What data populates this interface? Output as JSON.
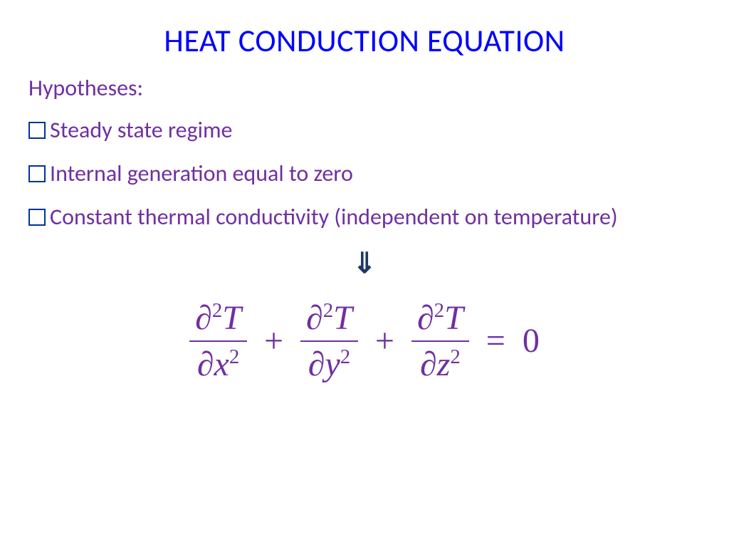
{
  "slide": {
    "title": "HEAT CONDUCTION EQUATION",
    "subtitle": "Hypotheses:",
    "bullets": [
      "Steady state regime",
      "Internal generation equal to zero",
      "Constant thermal conductivity (independent on temperature)"
    ],
    "arrow_glyph": "⇓",
    "equation": {
      "terms": [
        {
          "num_sym": "∂",
          "num_exp": "2",
          "num_var": "T",
          "den_sym": "∂",
          "den_var": "x",
          "den_exp": "2"
        },
        {
          "num_sym": "∂",
          "num_exp": "2",
          "num_var": "T",
          "den_sym": "∂",
          "den_var": "y",
          "den_exp": "2"
        },
        {
          "num_sym": "∂",
          "num_exp": "2",
          "num_var": "T",
          "den_sym": "∂",
          "den_var": "z",
          "den_exp": "2"
        }
      ],
      "rhs": "0",
      "plus": "+",
      "equals": "="
    }
  },
  "style": {
    "title_color": "#0000ff",
    "text_color": "#7030a0",
    "bullet_border_color": "#003399",
    "arrow_color": "#1f3864",
    "background_color": "#ffffff",
    "title_fontsize": 44,
    "body_fontsize": 32,
    "equation_fontsize": 48,
    "font_family_body": "Calibri",
    "font_family_equation": "Times New Roman"
  }
}
